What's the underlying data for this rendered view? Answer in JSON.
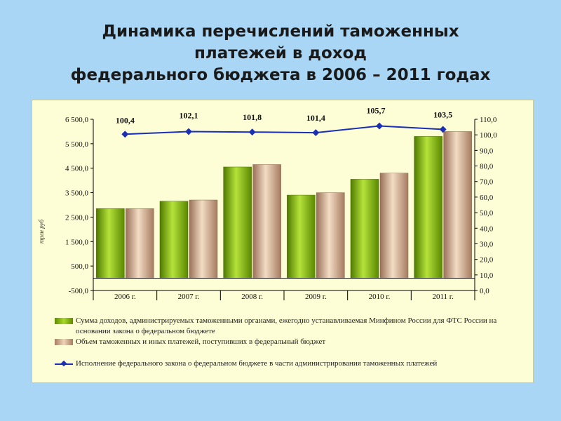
{
  "title": {
    "line1": "Динамика перечислений таможенных",
    "line2": "платежей в доход",
    "line3": "федерального бюджета в 2006 – 2011 годах"
  },
  "chart_data": {
    "type": "bar",
    "categories": [
      "2006 г.",
      "2007 г.",
      "2008 г.",
      "2009 г.",
      "2010 г.",
      "2011 г."
    ],
    "series": [
      {
        "name": "Сумма доходов, администрируемых таможенными органами, ежегодно устанавливаемая Минфином России для ФТС России на основании закона о федеральном бюджете",
        "values": [
          2850,
          3150,
          4550,
          3400,
          4050,
          5800
        ],
        "color": "#8cc21a"
      },
      {
        "name": "Объем таможенных и иных платежей, поступивших в федеральный бюджет",
        "values": [
          2850,
          3200,
          4650,
          3500,
          4300,
          6000
        ],
        "color": "#d9b295"
      },
      {
        "name": "Исполнение федерального закона о федеральном бюджете в части администрирования таможенных платежей",
        "type": "line",
        "axis": "right",
        "values": [
          100.4,
          102.1,
          101.8,
          101.4,
          105.7,
          103.5
        ],
        "labels": [
          "100,4",
          "102,1",
          "101,8",
          "101,4",
          "105,7",
          "103,5"
        ],
        "color": "#1a2fb5"
      }
    ],
    "y_left": {
      "min": -500,
      "max": 6500,
      "ticks": [
        -500,
        500,
        1500,
        2500,
        3500,
        4500,
        5500,
        6500
      ],
      "tick_labels": [
        "-500,0",
        "500,0",
        "1 500,0",
        "2 500,0",
        "3 500,0",
        "4 500,0",
        "5 500,0",
        "6 500,0"
      ],
      "label": "трлн руб"
    },
    "y_right": {
      "min": 0,
      "max": 110,
      "ticks": [
        0,
        10,
        20,
        30,
        40,
        50,
        60,
        70,
        80,
        90,
        100,
        110
      ],
      "tick_labels": [
        "0,0",
        "10,0",
        "20,0",
        "30,0",
        "40,0",
        "50,0",
        "60,0",
        "70,0",
        "80,0",
        "90,0",
        "100,0",
        "110,0"
      ]
    },
    "legend_position": "bottom",
    "grid": false
  }
}
